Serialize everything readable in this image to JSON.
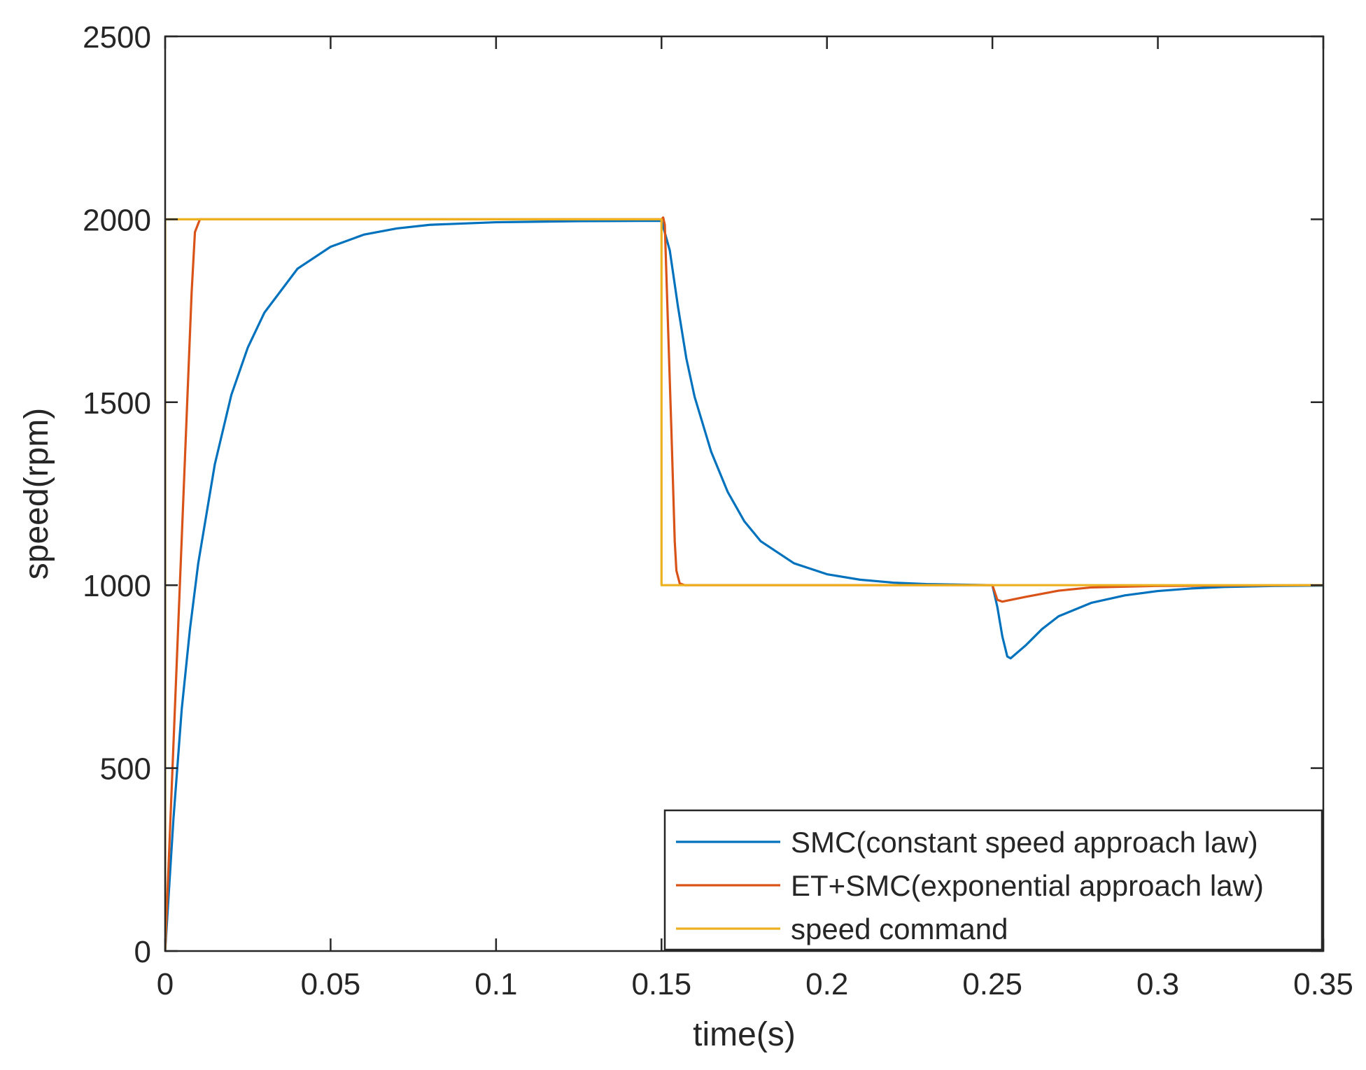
{
  "chart_data": {
    "type": "line",
    "xlabel": "time(s)",
    "ylabel": "speed(rpm)",
    "xlim": [
      0,
      0.35
    ],
    "ylim": [
      0,
      2500
    ],
    "xticks": [
      0,
      0.05,
      0.1,
      0.15,
      0.2,
      0.25,
      0.3,
      0.35
    ],
    "xtick_labels": [
      "0",
      "0.05",
      "0.1",
      "0.15",
      "0.2",
      "0.25",
      "0.3",
      "0.35"
    ],
    "yticks": [
      0,
      500,
      1000,
      1500,
      2000,
      2500
    ],
    "ytick_labels": [
      "0",
      "500",
      "1000",
      "1500",
      "2000",
      "2500"
    ],
    "grid": false,
    "legend_position": "bottom-right",
    "series": [
      {
        "name": "SMC(constant speed approach law)",
        "color": "#0072BD",
        "points": [
          [
            0,
            0
          ],
          [
            0.0025,
            360
          ],
          [
            0.005,
            660
          ],
          [
            0.0075,
            880
          ],
          [
            0.01,
            1060
          ],
          [
            0.015,
            1330
          ],
          [
            0.02,
            1520
          ],
          [
            0.025,
            1650
          ],
          [
            0.03,
            1745
          ],
          [
            0.04,
            1865
          ],
          [
            0.05,
            1925
          ],
          [
            0.06,
            1958
          ],
          [
            0.07,
            1975
          ],
          [
            0.08,
            1985
          ],
          [
            0.1,
            1992
          ],
          [
            0.125,
            1995
          ],
          [
            0.15,
            1996
          ],
          [
            0.1525,
            1915
          ],
          [
            0.155,
            1760
          ],
          [
            0.1575,
            1620
          ],
          [
            0.16,
            1515
          ],
          [
            0.165,
            1365
          ],
          [
            0.17,
            1255
          ],
          [
            0.175,
            1175
          ],
          [
            0.18,
            1120
          ],
          [
            0.19,
            1060
          ],
          [
            0.2,
            1030
          ],
          [
            0.21,
            1015
          ],
          [
            0.22,
            1007
          ],
          [
            0.23,
            1003
          ],
          [
            0.25,
            1000
          ],
          [
            0.2515,
            940
          ],
          [
            0.253,
            860
          ],
          [
            0.2545,
            805
          ],
          [
            0.2555,
            800
          ],
          [
            0.26,
            835
          ],
          [
            0.265,
            880
          ],
          [
            0.27,
            915
          ],
          [
            0.28,
            952
          ],
          [
            0.29,
            972
          ],
          [
            0.3,
            984
          ],
          [
            0.31,
            991
          ],
          [
            0.32,
            995
          ],
          [
            0.335,
            998
          ],
          [
            0.35,
            999
          ]
        ]
      },
      {
        "name": "ET+SMC(exponential approach law)",
        "color": "#D95319",
        "points": [
          [
            0,
            0
          ],
          [
            0.002,
            450
          ],
          [
            0.004,
            900
          ],
          [
            0.006,
            1350
          ],
          [
            0.008,
            1800
          ],
          [
            0.009,
            1965
          ],
          [
            0.0105,
            2000
          ],
          [
            0.15,
            2000
          ],
          [
            0.1505,
            2005
          ],
          [
            0.151,
            1985
          ],
          [
            0.152,
            1700
          ],
          [
            0.153,
            1420
          ],
          [
            0.154,
            1120
          ],
          [
            0.1545,
            1040
          ],
          [
            0.1555,
            1005
          ],
          [
            0.157,
            1000
          ],
          [
            0.25,
            1000
          ],
          [
            0.2515,
            960
          ],
          [
            0.253,
            955
          ],
          [
            0.26,
            968
          ],
          [
            0.27,
            985
          ],
          [
            0.28,
            994
          ],
          [
            0.3,
            998
          ],
          [
            0.35,
            1000
          ]
        ]
      },
      {
        "name": "speed command",
        "color": "#EDB120",
        "points": [
          [
            0,
            0
          ],
          [
            0,
            2000
          ],
          [
            0.15,
            2000
          ],
          [
            0.15,
            1000
          ],
          [
            0.35,
            1000
          ]
        ]
      }
    ]
  }
}
